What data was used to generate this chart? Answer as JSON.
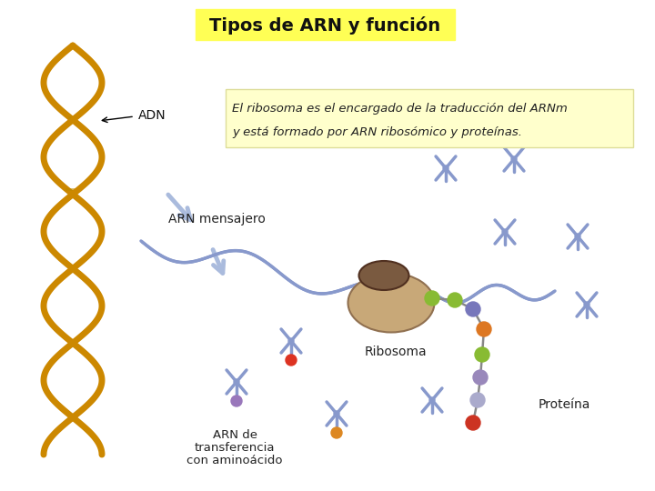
{
  "title": "Tipos de ARN y función",
  "title_bg": "#ffff55",
  "title_fontsize": 14,
  "info_line1": "El ribosoma es el encargado de la traducción del ARNm",
  "info_line2": "y está formado por ARN ribosómico y proteínas.",
  "info_box_bg": "#ffffcc",
  "info_box_border": "#dddd99",
  "label_adn": "ADN",
  "label_arn_mensajero": "ARN mensajero",
  "label_ribosoma": "Ribosoma",
  "label_trna1": "ARN de",
  "label_trna2": "transferencia",
  "label_trna3": "con aminoácido",
  "label_proteina": "Proteína",
  "bg_color": "#ffffff",
  "dna_color": "#cc8800",
  "arn_color": "#8899cc",
  "arrow_color": "#aabbdd",
  "ribosome_tan": "#c8a878",
  "ribosome_dark": "#7a5a40",
  "font_labels": 10,
  "trna_positions": [
    [
      490,
      185,
      "none"
    ],
    [
      565,
      175,
      "none"
    ],
    [
      555,
      255,
      "none"
    ],
    [
      635,
      260,
      "none"
    ],
    [
      320,
      375,
      "red"
    ],
    [
      260,
      420,
      "purple"
    ],
    [
      370,
      455,
      "orange"
    ],
    [
      475,
      440,
      "none"
    ],
    [
      645,
      335,
      "none"
    ]
  ],
  "protein_chain": [
    [
      475,
      328,
      "#88bb33"
    ],
    [
      500,
      330,
      "#88bb33"
    ],
    [
      520,
      340,
      "#7777bb"
    ],
    [
      532,
      362,
      "#dd7722"
    ],
    [
      530,
      390,
      "#88bb33"
    ],
    [
      528,
      415,
      "#9988bb"
    ],
    [
      525,
      440,
      "#aaaacc"
    ],
    [
      520,
      465,
      "#cc3322"
    ]
  ]
}
